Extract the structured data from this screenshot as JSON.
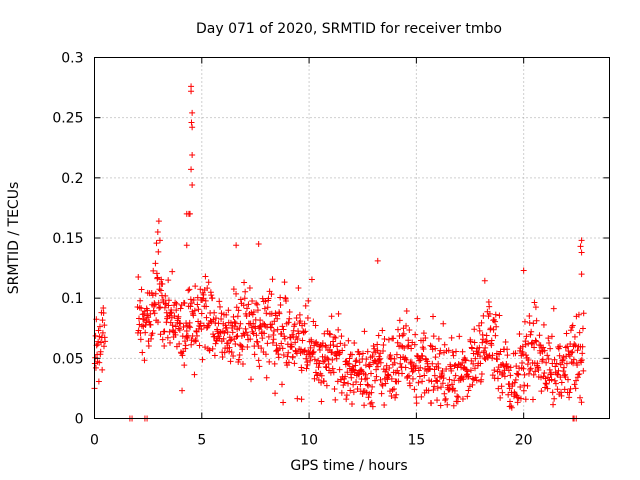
{
  "chart_data": {
    "type": "scatter",
    "title": "Day 071 of 2020, SRMTID for receiver tmbo",
    "xlabel": "GPS time / hours",
    "ylabel": "SRMTID / TECUs",
    "xlim": [
      0,
      24
    ],
    "ylim": [
      0,
      0.3
    ],
    "x_ticks": [
      0,
      5,
      10,
      15,
      20
    ],
    "x_tick_labels": [
      "0",
      "5",
      "10",
      "15",
      "20"
    ],
    "y_ticks": [
      0,
      0.05,
      0.1,
      0.15,
      0.2,
      0.25,
      0.3
    ],
    "y_tick_labels": [
      "0",
      "0.05",
      "0.1",
      "0.15",
      "0.2",
      "0.25",
      "0.3"
    ],
    "grid": true,
    "marker": "plus",
    "color": "#ff0000",
    "series": [
      {
        "name": "SRMTID",
        "trend": {
          "x": [
            0,
            0.3,
            0.5,
            1.0,
            1.7,
            2.0,
            2.5,
            3.0,
            3.5,
            4.0,
            4.5,
            5.0,
            5.5,
            6.0,
            6.5,
            7.0,
            7.5,
            8.0,
            8.5,
            9.0,
            9.5,
            10.0,
            10.5,
            11.0,
            11.5,
            12.0,
            12.5,
            13.0,
            13.5,
            14.0,
            14.5,
            15.0,
            15.5,
            16.0,
            16.5,
            17.0,
            17.5,
            18.0,
            18.5,
            19.0,
            19.5,
            20.0,
            20.5,
            21.0,
            21.5,
            22.0,
            22.5,
            22.8
          ],
          "y": [
            0.06,
            0.065,
            0.07,
            null,
            null,
            0.08,
            0.085,
            0.1,
            0.085,
            0.075,
            0.08,
            0.085,
            0.08,
            0.07,
            0.075,
            0.08,
            0.082,
            0.078,
            0.075,
            0.07,
            0.065,
            0.06,
            0.05,
            0.045,
            0.04,
            0.04,
            0.035,
            0.04,
            0.04,
            0.045,
            0.05,
            0.045,
            0.04,
            0.035,
            0.035,
            0.035,
            0.045,
            0.06,
            0.07,
            0.04,
            0.025,
            0.05,
            0.055,
            0.045,
            0.04,
            0.045,
            0.05,
            0.06
          ]
        },
        "spread": 0.017,
        "coverage_gaps_hours": [
          [
            0.6,
            1.7
          ]
        ],
        "outliers": [
          {
            "x": 4.5,
            "y": 0.276
          },
          {
            "x": 4.5,
            "y": 0.272
          },
          {
            "x": 4.55,
            "y": 0.254
          },
          {
            "x": 4.52,
            "y": 0.246
          },
          {
            "x": 4.55,
            "y": 0.242
          },
          {
            "x": 4.55,
            "y": 0.219
          },
          {
            "x": 4.5,
            "y": 0.207
          },
          {
            "x": 4.55,
            "y": 0.194
          },
          {
            "x": 4.45,
            "y": 0.17
          },
          {
            "x": 4.4,
            "y": 0.17
          },
          {
            "x": 4.3,
            "y": 0.17
          },
          {
            "x": 4.3,
            "y": 0.144
          },
          {
            "x": 3.0,
            "y": 0.164
          },
          {
            "x": 2.95,
            "y": 0.155
          },
          {
            "x": 3.05,
            "y": 0.148
          },
          {
            "x": 6.6,
            "y": 0.144
          },
          {
            "x": 7.65,
            "y": 0.145
          },
          {
            "x": 13.2,
            "y": 0.131
          },
          {
            "x": 22.7,
            "y": 0.148
          },
          {
            "x": 22.65,
            "y": 0.143
          },
          {
            "x": 22.7,
            "y": 0.138
          },
          {
            "x": 22.7,
            "y": 0.12
          },
          {
            "x": 20.0,
            "y": 0.123
          },
          {
            "x": 9.65,
            "y": 0.016
          },
          {
            "x": 12.0,
            "y": 0.012
          },
          {
            "x": 19.35,
            "y": 0.01
          },
          {
            "x": 20.1,
            "y": 0.016
          }
        ],
        "zero_points_x": [
          1.65,
          1.75,
          2.35,
          2.45,
          22.3,
          22.35,
          22.45
        ]
      }
    ]
  }
}
